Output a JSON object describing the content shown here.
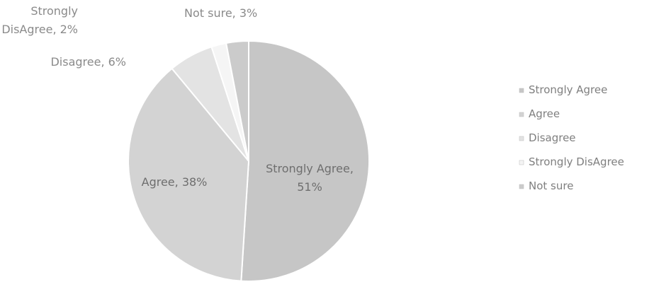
{
  "chart_data": {
    "type": "pie",
    "categories": [
      "Strongly Agree",
      "Agree",
      "Disagree",
      "Strongly DisAgree",
      "Not sure"
    ],
    "values": [
      51,
      38,
      6,
      2,
      3
    ],
    "value_unit": "%",
    "data_labels": [
      [
        "Strongly Agree,",
        "51%"
      ],
      [
        "Agree, 38%"
      ],
      [
        "Disagree, 6%"
      ],
      [
        "Strongly",
        "DisAgree, 2%"
      ],
      [
        "Not sure, 3%"
      ]
    ],
    "colors": [
      "#c6c6c6",
      "#d3d3d3",
      "#e3e3e3",
      "#f5f5f5",
      "#cbcbcb"
    ],
    "legend": {
      "position": "right",
      "entries": [
        "Strongly Agree",
        "Agree",
        "Disagree",
        "Strongly DisAgree",
        "Not sure"
      ]
    }
  }
}
